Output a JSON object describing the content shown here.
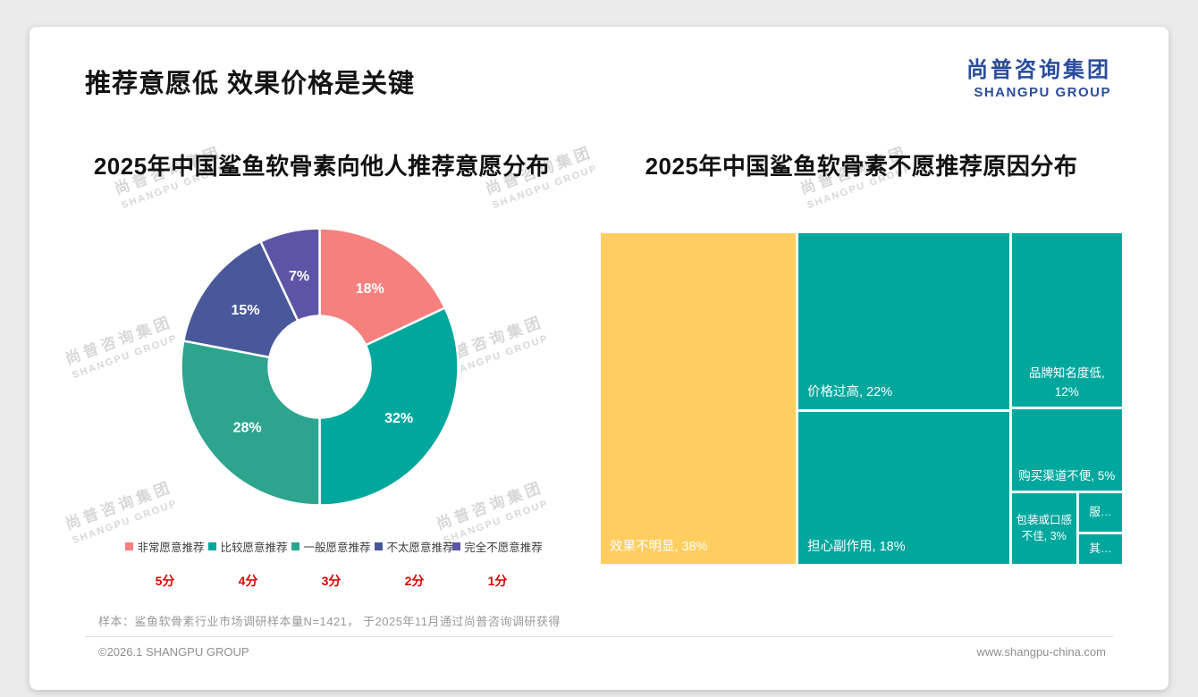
{
  "page": {
    "title": "推荐意愿低 效果价格是关键",
    "logo": {
      "cn": "尚普咨询集团",
      "en": "SHANGPU GROUP",
      "color": "#2b4c9c"
    },
    "watermark": {
      "line1": "尚普咨询集团",
      "line2": "SHANGPU GROUP"
    },
    "sample_note": "样本：鲨鱼软骨素行业市场调研样本量N=1421， 于2025年11月通过尚普咨询调研获得",
    "footer": {
      "copyright": "©2026.1 SHANGPU GROUP",
      "website": "www.shangpu-china.com"
    }
  },
  "chart_data": [
    {
      "type": "pie",
      "donut": true,
      "title": "2025年中国鲨鱼软骨素向他人推荐意愿分布",
      "labels": [
        "非常愿意推荐",
        "比较愿意推荐",
        "一般愿意推荐",
        "不太愿意推荐",
        "完全不愿意推荐"
      ],
      "values": [
        18,
        32,
        28,
        15,
        7
      ],
      "value_labels": [
        "18%",
        "32%",
        "28%",
        "15%",
        "7%"
      ],
      "scores": [
        "5分",
        "4分",
        "3分",
        "2分",
        "1分"
      ],
      "colors": [
        "#F5807E",
        "#00A79D",
        "#2DA48E",
        "#48589B",
        "#5C55A6"
      ],
      "legend_position": "bottom",
      "start_angle_deg": 0
    },
    {
      "type": "treemap",
      "title": "2025年中国鲨鱼软骨素不愿推荐原因分布",
      "items": [
        {
          "label": "效果不明显",
          "value": 38,
          "display": "效果不明显, 38%",
          "color": "#FFCE5E"
        },
        {
          "label": "价格过高",
          "value": 22,
          "display": "价格过高, 22%",
          "color": "#00A79D"
        },
        {
          "label": "担心副作用",
          "value": 18,
          "display": "担心副作用, 18%",
          "color": "#00A79D"
        },
        {
          "label": "品牌知名度低",
          "value": 12,
          "display": "品牌知名度低, 12%",
          "color": "#00A79D"
        },
        {
          "label": "购买渠道不便",
          "value": 5,
          "display": "购买渠道不便, 5%",
          "color": "#00A79D"
        },
        {
          "label": "包装或口感不佳",
          "value": 3,
          "display": "包装或口感不佳, 3%",
          "color": "#00A79D"
        },
        {
          "label": "服…",
          "display": "服…",
          "color": "#00A79D"
        },
        {
          "label": "其…",
          "display": "其…",
          "color": "#00A79D"
        }
      ]
    }
  ]
}
